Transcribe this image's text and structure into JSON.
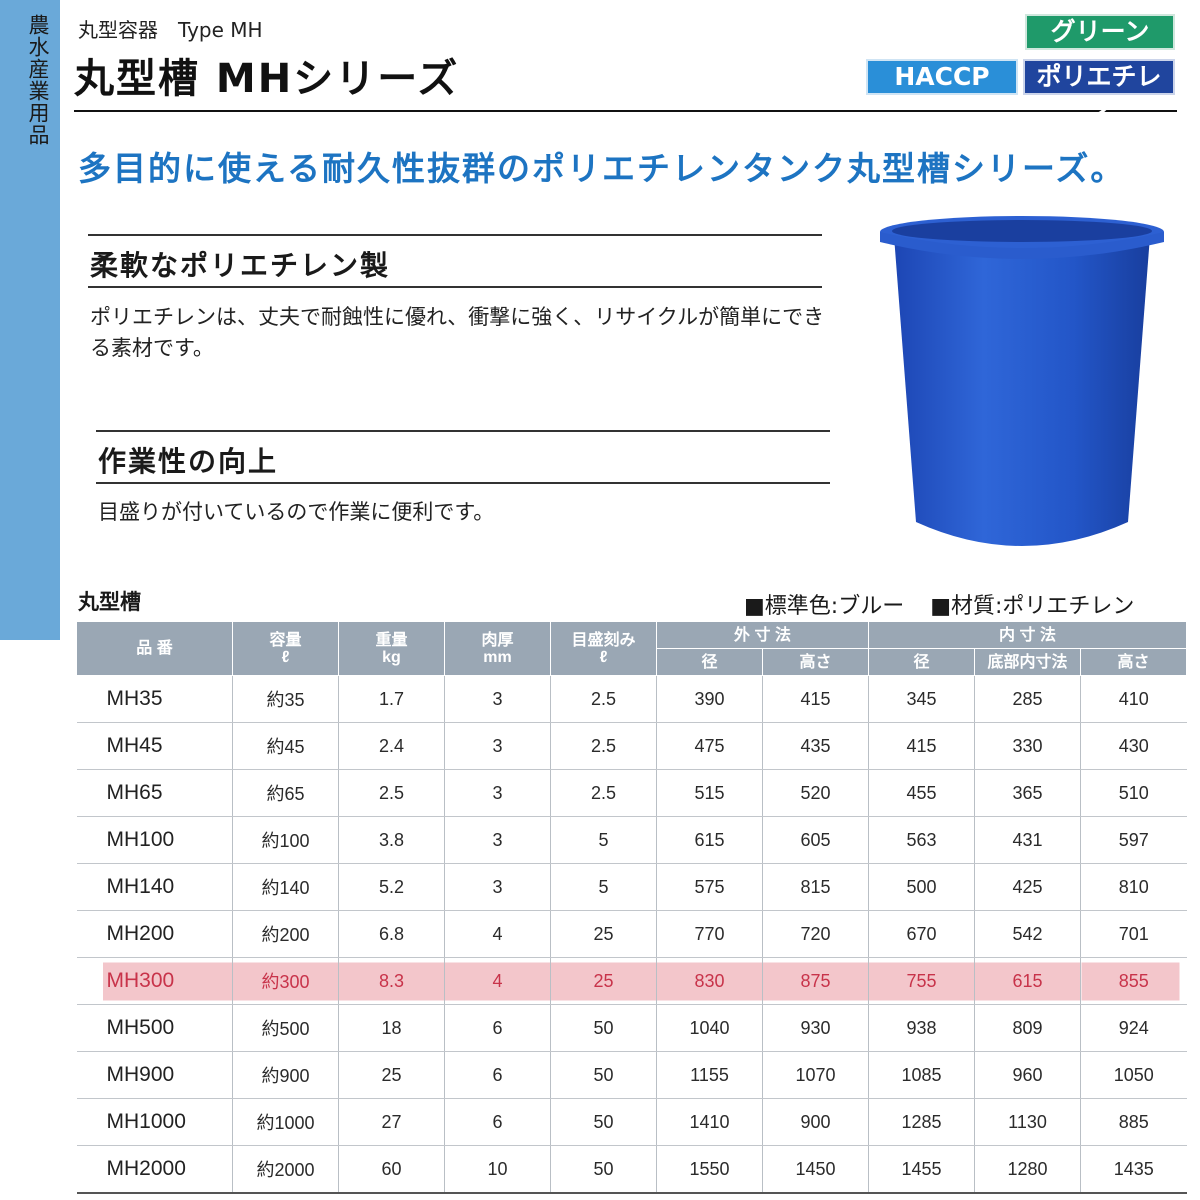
{
  "side_tab": {
    "label": "農水産業用品"
  },
  "header": {
    "subtitle": "丸型容器　Type MH",
    "title": "丸型槽 MHシリーズ"
  },
  "badges": {
    "green": "グリーン",
    "haccp": "HACCP",
    "material": "ポリエチレン"
  },
  "tagline": "多目的に使える耐久性抜群のポリエチレンタンク丸型槽シリーズ。",
  "sections": [
    {
      "heading": "柔軟なポリエチレン製",
      "text": "ポリエチレンは、丈夫で耐蝕性に優れ、衝撃に強く、リサイクルが簡単にできる素材です。"
    },
    {
      "heading": "作業性の向上",
      "text": "目盛りが付いているので作業に便利です。"
    }
  ],
  "product_image": {
    "color": "#1f4fc0",
    "description_icon": "blue-round-tank"
  },
  "table": {
    "caption": "丸型槽",
    "std_color": "■標準色:ブルー",
    "material": "■材質:ポリエチレン",
    "headers": {
      "model": "品 番",
      "capacity": "容量",
      "capacity_unit": "ℓ",
      "weight": "重量",
      "weight_unit": "kg",
      "thickness": "肉厚",
      "thickness_unit": "mm",
      "scale": "目盛刻み",
      "scale_unit": "ℓ",
      "outer": "外 寸 法",
      "outer_dia": "径",
      "outer_height": "高さ",
      "inner": "内 寸 法",
      "inner_dia": "径",
      "inner_bottom": "底部内寸法",
      "inner_height": "高さ"
    },
    "rows": [
      [
        "MH35",
        "約35",
        "1.7",
        "3",
        "2.5",
        "390",
        "415",
        "345",
        "285",
        "410"
      ],
      [
        "MH45",
        "約45",
        "2.4",
        "3",
        "2.5",
        "475",
        "435",
        "415",
        "330",
        "430"
      ],
      [
        "MH65",
        "約65",
        "2.5",
        "3",
        "2.5",
        "515",
        "520",
        "455",
        "365",
        "510"
      ],
      [
        "MH100",
        "約100",
        "3.8",
        "3",
        "5",
        "615",
        "605",
        "563",
        "431",
        "597"
      ],
      [
        "MH140",
        "約140",
        "5.2",
        "3",
        "5",
        "575",
        "815",
        "500",
        "425",
        "810"
      ],
      [
        "MH200",
        "約200",
        "6.8",
        "4",
        "25",
        "770",
        "720",
        "670",
        "542",
        "701"
      ],
      [
        "MH300",
        "約300",
        "8.3",
        "4",
        "25",
        "830",
        "875",
        "755",
        "615",
        "855"
      ],
      [
        "MH500",
        "約500",
        "18",
        "6",
        "50",
        "1040",
        "930",
        "938",
        "809",
        "924"
      ],
      [
        "MH900",
        "約900",
        "25",
        "6",
        "50",
        "1155",
        "1070",
        "1085",
        "960",
        "1050"
      ],
      [
        "MH1000",
        "約1000",
        "27",
        "6",
        "50",
        "1410",
        "900",
        "1285",
        "1130",
        "885"
      ],
      [
        "MH2000",
        "約2000",
        "60",
        "10",
        "50",
        "1550",
        "1450",
        "1455",
        "1280",
        "1435"
      ]
    ],
    "highlight_row_color": "#c8334a"
  }
}
